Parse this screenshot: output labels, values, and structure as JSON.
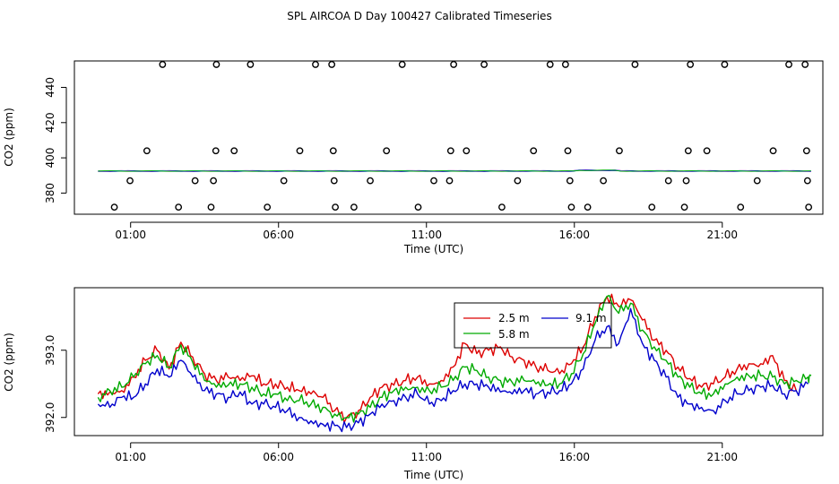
{
  "title": "SPL AIRCOA D  Day 100427  Calibrated Timeseries",
  "colors": {
    "red": "#dd0000",
    "green": "#00aa00",
    "blue": "#0000cc",
    "magenta": "#cc00cc",
    "cyan": "#00aaaa"
  },
  "chart_data": [
    {
      "type": "scatter",
      "xlabel": "Time (UTC)",
      "ylabel": "CO2 (ppm)",
      "xlim": [
        -0.9,
        24.4
      ],
      "ylim": [
        368,
        455
      ],
      "x_ticks": [
        1,
        6,
        11,
        16,
        21
      ],
      "x_tick_labels": [
        "01:00",
        "06:00",
        "11:00",
        "16:00",
        "21:00"
      ],
      "y_ticks": [
        380,
        400,
        420,
        440
      ],
      "y_tick_labels": [
        "380",
        "400",
        "420",
        "440"
      ],
      "outliers": [
        {
          "x": 0.45,
          "y": 372
        },
        {
          "x": 0.98,
          "y": 387
        },
        {
          "x": 1.55,
          "y": 404
        },
        {
          "x": 2.08,
          "y": 453
        },
        {
          "x": 2.62,
          "y": 372
        },
        {
          "x": 3.18,
          "y": 387
        },
        {
          "x": 3.72,
          "y": 372
        },
        {
          "x": 3.8,
          "y": 387
        },
        {
          "x": 3.88,
          "y": 404
        },
        {
          "x": 3.9,
          "y": 453
        },
        {
          "x": 4.5,
          "y": 404
        },
        {
          "x": 5.05,
          "y": 453
        },
        {
          "x": 5.62,
          "y": 372
        },
        {
          "x": 6.18,
          "y": 387
        },
        {
          "x": 6.72,
          "y": 404
        },
        {
          "x": 7.25,
          "y": 453
        },
        {
          "x": 7.8,
          "y": 453
        },
        {
          "x": 7.85,
          "y": 404
        },
        {
          "x": 7.88,
          "y": 387
        },
        {
          "x": 7.92,
          "y": 372
        },
        {
          "x": 8.55,
          "y": 372
        },
        {
          "x": 9.1,
          "y": 387
        },
        {
          "x": 9.65,
          "y": 404
        },
        {
          "x": 10.18,
          "y": 453
        },
        {
          "x": 10.72,
          "y": 372
        },
        {
          "x": 11.25,
          "y": 387
        },
        {
          "x": 11.78,
          "y": 387
        },
        {
          "x": 11.82,
          "y": 404
        },
        {
          "x": 11.92,
          "y": 453
        },
        {
          "x": 12.35,
          "y": 404
        },
        {
          "x": 12.95,
          "y": 453
        },
        {
          "x": 13.55,
          "y": 372
        },
        {
          "x": 14.08,
          "y": 387
        },
        {
          "x": 14.62,
          "y": 404
        },
        {
          "x": 15.18,
          "y": 453
        },
        {
          "x": 15.7,
          "y": 453
        },
        {
          "x": 15.78,
          "y": 404
        },
        {
          "x": 15.85,
          "y": 387
        },
        {
          "x": 15.9,
          "y": 372
        },
        {
          "x": 16.45,
          "y": 372
        },
        {
          "x": 16.98,
          "y": 387
        },
        {
          "x": 17.52,
          "y": 404
        },
        {
          "x": 18.05,
          "y": 453
        },
        {
          "x": 18.62,
          "y": 372
        },
        {
          "x": 19.18,
          "y": 387
        },
        {
          "x": 19.72,
          "y": 372
        },
        {
          "x": 19.78,
          "y": 387
        },
        {
          "x": 19.85,
          "y": 404
        },
        {
          "x": 19.92,
          "y": 453
        },
        {
          "x": 20.48,
          "y": 404
        },
        {
          "x": 21.08,
          "y": 453
        },
        {
          "x": 21.62,
          "y": 372
        },
        {
          "x": 22.18,
          "y": 387
        },
        {
          "x": 22.72,
          "y": 404
        },
        {
          "x": 23.25,
          "y": 453
        },
        {
          "x": 23.8,
          "y": 453
        },
        {
          "x": 23.85,
          "y": 404
        },
        {
          "x": 23.88,
          "y": 387
        },
        {
          "x": 23.92,
          "y": 372
        }
      ],
      "baseline_ppm": 392.5
    },
    {
      "type": "line",
      "xlabel": "Time (UTC)",
      "ylabel": "CO2 (ppm)",
      "xlim": [
        -0.9,
        24.4
      ],
      "ylim": [
        391.73,
        393.93
      ],
      "x_ticks": [
        1,
        6,
        11,
        16,
        21
      ],
      "x_tick_labels": [
        "01:00",
        "06:00",
        "11:00",
        "16:00",
        "21:00"
      ],
      "y_ticks": [
        392.0,
        393.0
      ],
      "y_tick_labels": [
        "392.0",
        "393.0"
      ],
      "legend": [
        "2.5 m",
        "5.8 m",
        "9.1 m"
      ],
      "series": [
        {
          "name": "2.5 m",
          "color": "red",
          "x": [
            -0.1,
            0.3,
            0.7,
            1.1,
            1.5,
            1.9,
            2.3,
            2.7,
            3.1,
            3.5,
            3.9,
            4.3,
            4.7,
            5.1,
            5.5,
            5.9,
            6.3,
            6.7,
            7.1,
            7.5,
            7.9,
            8.3,
            8.7,
            9.1,
            9.5,
            9.9,
            10.3,
            10.7,
            11.1,
            11.5,
            11.9,
            12.3,
            12.7,
            13.1,
            13.5,
            13.9,
            14.3,
            14.7,
            15.1,
            15.5,
            15.9,
            16.3,
            16.7,
            17.1,
            17.5,
            17.9,
            18.3,
            18.7,
            19.1,
            19.5,
            19.9,
            20.3,
            20.7,
            21.1,
            21.5,
            21.9,
            22.3,
            22.7,
            23.1,
            23.5
          ],
          "y": [
            392.35,
            392.38,
            392.4,
            392.6,
            392.85,
            393.0,
            392.72,
            393.12,
            392.9,
            392.65,
            392.55,
            392.6,
            392.55,
            392.62,
            392.5,
            392.5,
            392.45,
            392.4,
            392.35,
            392.3,
            392.1,
            392.0,
            392.1,
            392.3,
            392.45,
            392.48,
            392.55,
            392.6,
            392.5,
            392.55,
            392.75,
            393.1,
            392.95,
            393.0,
            393.05,
            392.9,
            392.85,
            392.75,
            392.7,
            392.65,
            392.8,
            393.05,
            393.5,
            393.8,
            393.65,
            393.75,
            393.45,
            393.15,
            393.0,
            392.75,
            392.58,
            392.45,
            392.5,
            392.6,
            392.72,
            392.8,
            392.8,
            392.92,
            392.55,
            392.4
          ]
        },
        {
          "name": "5.8 m",
          "color": "green",
          "x": [
            -0.1,
            0.3,
            0.7,
            1.1,
            1.5,
            1.9,
            2.3,
            2.7,
            3.1,
            3.5,
            3.9,
            4.3,
            4.7,
            5.1,
            5.5,
            5.9,
            6.3,
            6.7,
            7.1,
            7.5,
            7.9,
            8.3,
            8.7,
            9.1,
            9.5,
            9.9,
            10.3,
            10.7,
            11.1,
            11.5,
            11.9,
            12.3,
            12.7,
            13.1,
            13.5,
            13.9,
            14.3,
            14.7,
            15.1,
            15.5,
            15.9,
            16.3,
            16.7,
            17.1,
            17.5,
            17.9,
            18.3,
            18.7,
            19.1,
            19.5,
            19.9,
            20.3,
            20.7,
            21.1,
            21.5,
            21.9,
            22.3,
            22.7,
            23.1,
            23.5,
            23.9,
            24.0
          ],
          "y": [
            392.3,
            392.4,
            392.45,
            392.6,
            392.8,
            392.92,
            392.75,
            393.08,
            392.82,
            392.55,
            392.45,
            392.48,
            392.5,
            392.45,
            392.35,
            392.35,
            392.25,
            392.25,
            392.2,
            392.15,
            392.05,
            392.0,
            392.05,
            392.15,
            392.3,
            392.4,
            392.45,
            392.45,
            392.4,
            392.45,
            392.55,
            392.75,
            392.7,
            392.6,
            392.55,
            392.52,
            392.55,
            392.5,
            392.48,
            392.5,
            392.65,
            392.95,
            393.4,
            393.8,
            393.55,
            393.7,
            393.3,
            393.05,
            392.85,
            392.6,
            392.45,
            392.35,
            392.35,
            392.5,
            392.6,
            392.62,
            392.62,
            392.6,
            392.5,
            392.55,
            392.6,
            392.62
          ]
        },
        {
          "name": "9.1 m",
          "color": "blue",
          "x": [
            -0.1,
            0.3,
            0.7,
            1.1,
            1.5,
            1.9,
            2.3,
            2.7,
            3.1,
            3.5,
            3.9,
            4.3,
            4.7,
            5.1,
            5.5,
            5.9,
            6.3,
            6.7,
            7.1,
            7.5,
            7.9,
            8.3,
            8.7,
            9.1,
            9.5,
            9.9,
            10.3,
            10.7,
            11.1,
            11.5,
            11.9,
            12.3,
            12.7,
            13.1,
            13.5,
            13.9,
            14.3,
            14.7,
            15.1,
            15.5,
            15.9,
            16.3,
            16.7,
            17.1,
            17.5,
            17.9,
            18.3,
            18.7,
            19.1,
            19.5,
            19.9,
            20.3,
            20.7,
            21.1,
            21.5,
            21.9,
            22.3,
            22.7,
            23.1,
            23.5,
            23.9
          ],
          "y": [
            392.2,
            392.15,
            392.3,
            392.3,
            392.5,
            392.72,
            392.6,
            392.85,
            392.6,
            392.4,
            392.35,
            392.3,
            392.38,
            392.2,
            392.2,
            392.15,
            392.1,
            392.0,
            391.95,
            391.9,
            391.88,
            391.85,
            391.92,
            392.05,
            392.2,
            392.25,
            392.3,
            392.35,
            392.2,
            392.25,
            392.4,
            392.5,
            392.5,
            392.45,
            392.38,
            392.35,
            392.4,
            392.35,
            392.38,
            392.4,
            392.5,
            392.72,
            393.15,
            393.35,
            393.1,
            393.62,
            393.1,
            392.85,
            392.6,
            392.3,
            392.2,
            392.15,
            392.1,
            392.25,
            392.35,
            392.4,
            392.45,
            392.48,
            392.35,
            392.4,
            392.5
          ]
        }
      ]
    }
  ]
}
